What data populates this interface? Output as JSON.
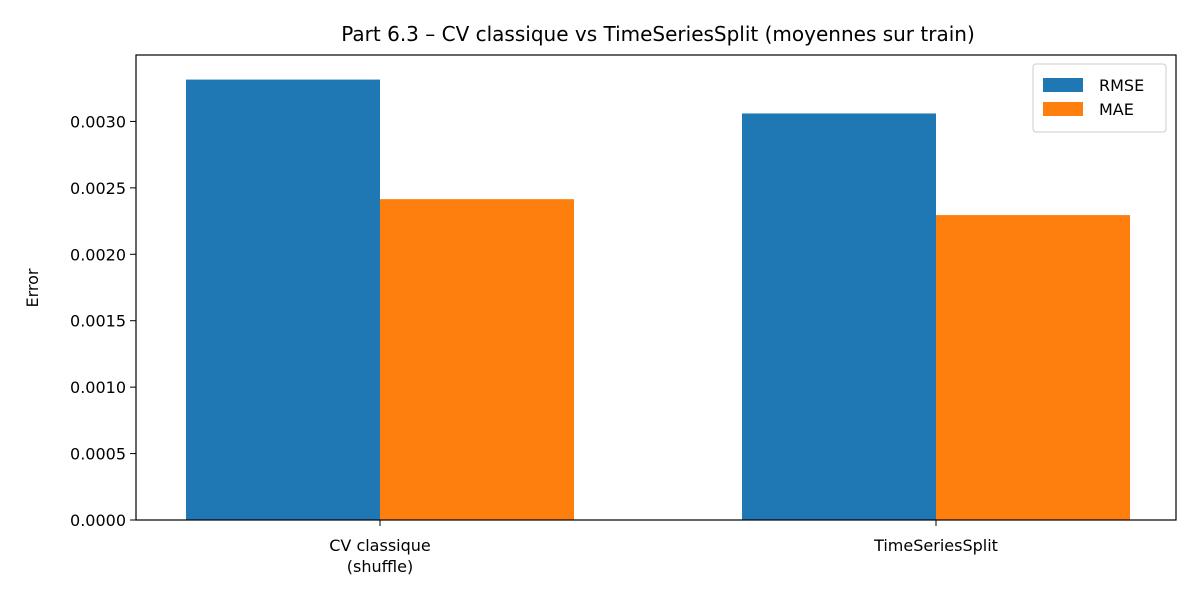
{
  "chart_data": {
    "type": "bar",
    "title": "Part 6.3 – CV classique vs TimeSeriesSplit (moyennes sur train)",
    "xlabel": "",
    "ylabel": "Error",
    "categories": [
      [
        "CV classique",
        "(shuffle)"
      ],
      [
        "TimeSeriesSplit"
      ]
    ],
    "series": [
      {
        "name": "RMSE",
        "color": "#1f77b4",
        "values": [
          0.003315,
          0.00306
        ]
      },
      {
        "name": "MAE",
        "color": "#ff7f0e",
        "values": [
          0.002415,
          0.002295
        ]
      }
    ],
    "ylim": [
      0,
      0.0035
    ],
    "yticks": [
      "0.0000",
      "0.0005",
      "0.0010",
      "0.0015",
      "0.0020",
      "0.0025",
      "0.0030"
    ],
    "grid": false,
    "legend": "top-right"
  }
}
